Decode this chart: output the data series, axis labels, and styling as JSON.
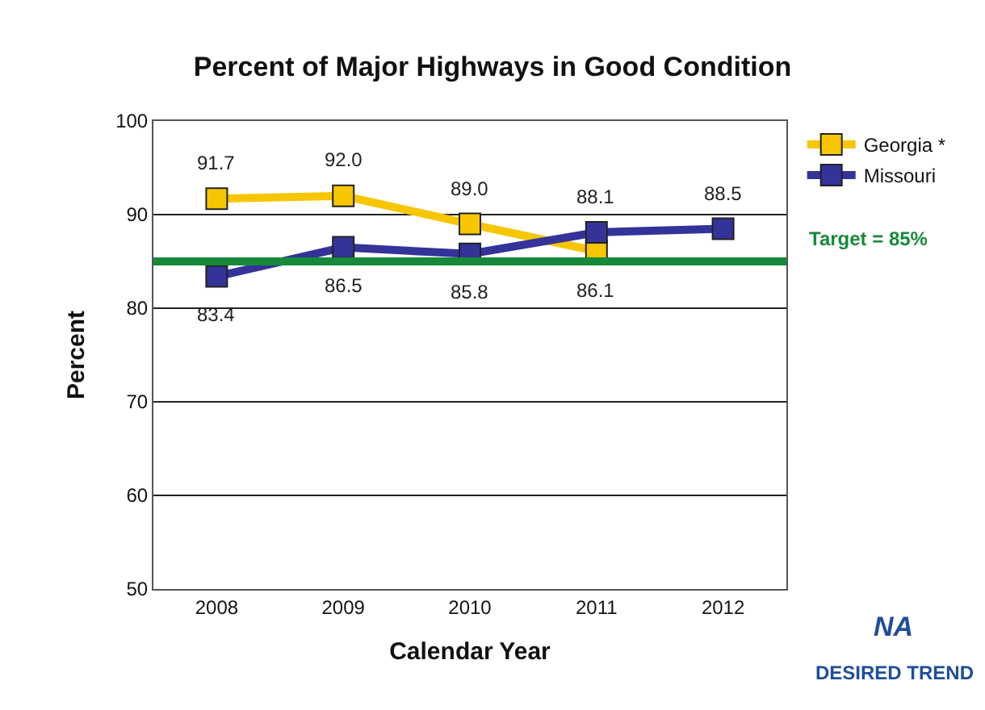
{
  "chart_data": {
    "type": "line",
    "title": "Percent of Major Highways in Good Condition",
    "xlabel": "Calendar Year",
    "ylabel": "Percent",
    "categories": [
      "2008",
      "2009",
      "2010",
      "2011",
      "2012"
    ],
    "series": [
      {
        "name": "Georgia *",
        "color": "#f7c600",
        "values": [
          91.7,
          92.0,
          89.0,
          86.1,
          null
        ],
        "value_labels": [
          "91.7",
          "92.0",
          "89.0",
          "86.1",
          null
        ]
      },
      {
        "name": "Missouri",
        "color": "#33339a",
        "values": [
          83.4,
          86.5,
          85.8,
          88.1,
          88.5
        ],
        "value_labels": [
          "83.4",
          "86.5",
          "85.8",
          "88.1",
          "88.5"
        ]
      }
    ],
    "ylim": [
      50,
      100
    ],
    "yticks": [
      50,
      60,
      70,
      80,
      90,
      100
    ],
    "grid": "y",
    "marker": "square",
    "line_style": "solid",
    "legend": "top right",
    "ref_lines": [
      {
        "axis": "y",
        "value": 85,
        "label": "Target = 85%",
        "color": "#178a3a"
      }
    ],
    "annotations": [
      "NA",
      "DESIRED TREND"
    ]
  }
}
